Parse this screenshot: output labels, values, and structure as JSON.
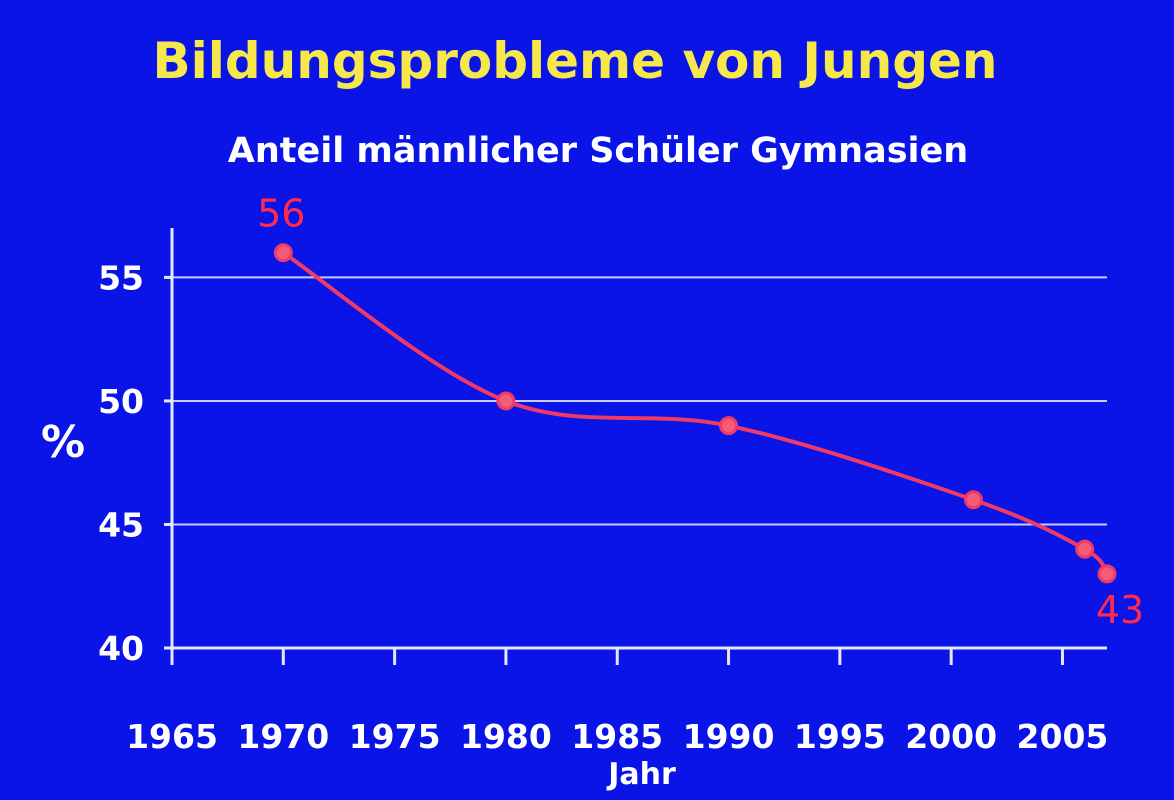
{
  "colors": {
    "background": "#0a14e6",
    "grid": "#c9cdf6",
    "axis": "#e4e7ff",
    "series": "#f03a66",
    "marker_fill": "#f45c78",
    "data_label": "#ff2b4e"
  },
  "chart_data": {
    "type": "line",
    "title": "Bildungsprobleme von Jungen",
    "subtitle": "Anteil männlicher Schüler Gymnasien",
    "xlabel": "Jahr",
    "ylabel": "%",
    "xlim": [
      1965,
      2007
    ],
    "ylim": [
      40,
      57
    ],
    "x_ticks": [
      1965,
      1970,
      1975,
      1980,
      1985,
      1990,
      1995,
      2000,
      2005
    ],
    "y_ticks": [
      40,
      45,
      50,
      55
    ],
    "grid": "horizontal",
    "series": [
      {
        "x": [
          1970,
          1980,
          1990,
          2001,
          2006,
          2007
        ],
        "y": [
          56,
          50,
          49,
          46,
          44,
          43
        ]
      }
    ],
    "annotations": [
      {
        "x": 1970,
        "y": 56,
        "text": "56"
      },
      {
        "x": 2007,
        "y": 43,
        "text": "43"
      }
    ]
  }
}
